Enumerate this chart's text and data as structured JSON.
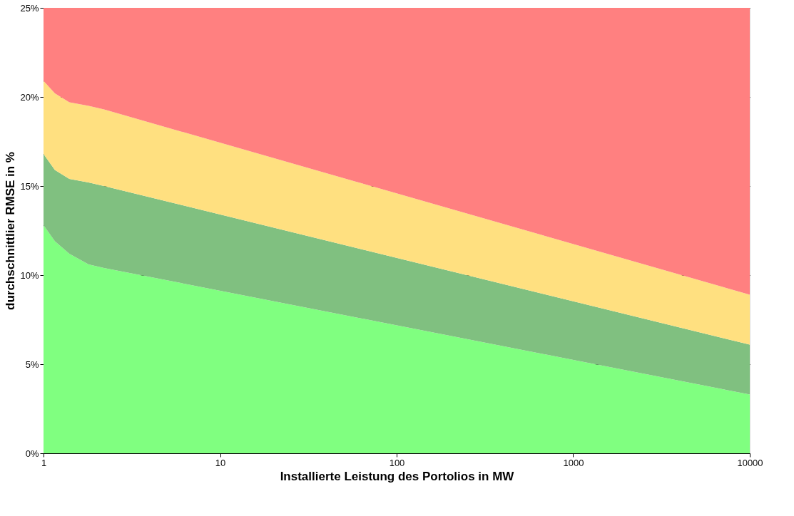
{
  "chart_data": {
    "type": "area",
    "stacked": true,
    "log": "x",
    "xlabel": "Installierte Leistung des Portolios in MW",
    "ylabel": "durchschnittlier RMSE in %",
    "x": [
      1,
      1.16,
      1.4,
      1.8,
      2.2,
      10000
    ],
    "series": [
      {
        "color": "#80ff80",
        "values": [
          12.8,
          11.9,
          11.2,
          10.6,
          10.4,
          3.3
        ]
      },
      {
        "color": "#80c080",
        "values": [
          4.0,
          4.0,
          4.2,
          4.6,
          4.6,
          2.8
        ]
      },
      {
        "color": "#ffe080",
        "values": [
          4.1,
          4.3,
          4.3,
          4.3,
          4.3,
          2.8
        ]
      },
      {
        "color": "#ff8080",
        "values": [
          4.1,
          4.8,
          5.3,
          5.5,
          5.7,
          16.1
        ]
      }
    ],
    "xlim": [
      1,
      10000
    ],
    "xticks": [
      1,
      10,
      100,
      1000,
      10000
    ],
    "ylim": [
      0,
      25
    ],
    "yticks": [
      {
        "value": 0,
        "label": "0%"
      },
      {
        "value": 5,
        "label": "5%"
      },
      {
        "value": 10,
        "label": "10%"
      },
      {
        "value": 15,
        "label": "15%"
      },
      {
        "value": 20,
        "label": "20%"
      },
      {
        "value": 25,
        "label": "25%"
      }
    ],
    "grid": "y",
    "legend": false
  }
}
